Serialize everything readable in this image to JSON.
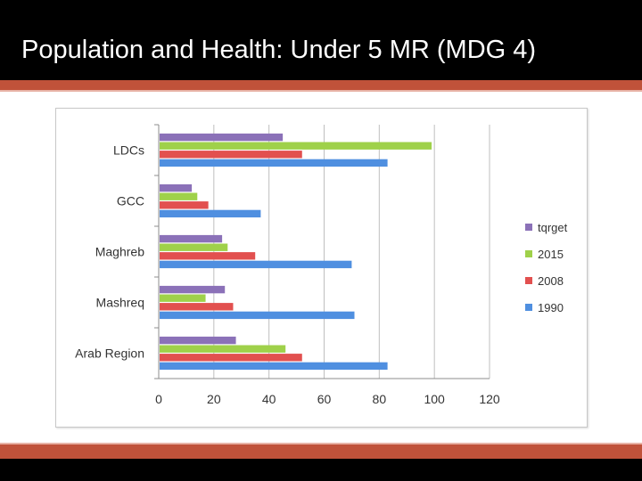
{
  "slide": {
    "title": "Population and Health: Under 5 MR (MDG 4)"
  },
  "colors": {
    "title_bar": "#000000",
    "accent_stripe": "#c0523a"
  },
  "chart_data": {
    "type": "bar",
    "orientation": "horizontal",
    "title": "",
    "xlabel": "",
    "ylabel": "",
    "xlim": [
      0,
      120
    ],
    "xticks": [
      0,
      20,
      40,
      60,
      80,
      100,
      120
    ],
    "grid": true,
    "legend_position": "right",
    "categories": [
      "LDCs",
      "GCC",
      "Maghreb",
      "Mashreq",
      "Arab Region"
    ],
    "series": [
      {
        "name": "tqrget",
        "color": "#8b71b8",
        "values": [
          45,
          12,
          23,
          24,
          28
        ]
      },
      {
        "name": "2015",
        "color": "#9fd14a",
        "values": [
          99,
          14,
          25,
          17,
          46
        ]
      },
      {
        "name": "2008",
        "color": "#e2504f",
        "values": [
          52,
          18,
          35,
          27,
          52
        ]
      },
      {
        "name": "1990",
        "color": "#4f8fe0",
        "values": [
          83,
          37,
          70,
          71,
          83
        ]
      }
    ]
  }
}
